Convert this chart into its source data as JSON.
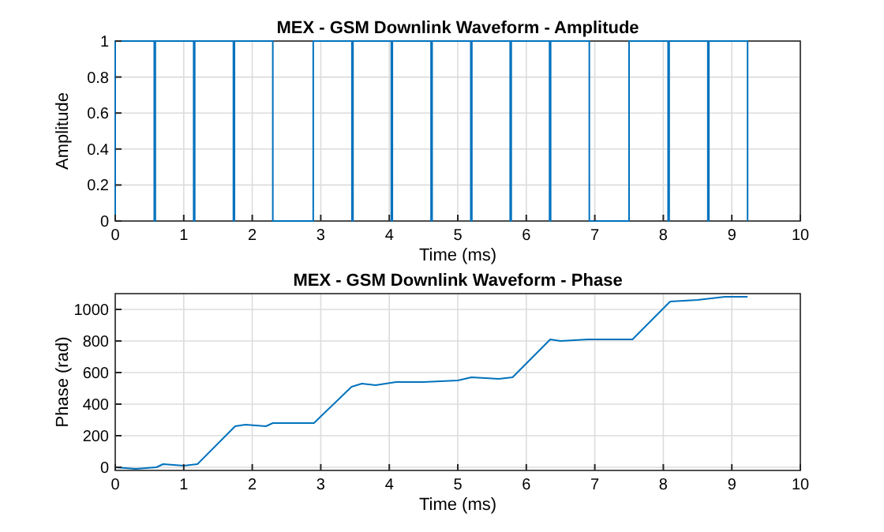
{
  "chart_data": [
    {
      "type": "line",
      "title": "MEX - GSM Downlink Waveform - Amplitude",
      "xlabel": "Time (ms)",
      "ylabel": "Amplitude",
      "xlim": [
        0,
        10
      ],
      "xticks": [
        0,
        1,
        2,
        3,
        4,
        5,
        6,
        7,
        8,
        9,
        10
      ],
      "ylim": [
        0,
        1
      ],
      "yticks": [
        0,
        0.2,
        0.4,
        0.6,
        0.8,
        1
      ],
      "grid": true,
      "marker": "none",
      "line_style": "solid",
      "series": [
        {
          "color": "#0072bd",
          "x": [
            0,
            0,
            0.57,
            0.57,
            0.585,
            0.585,
            1.145,
            1.145,
            1.16,
            1.16,
            1.725,
            1.725,
            1.74,
            1.74,
            2.3,
            2.3,
            2.89,
            2.89,
            3.455,
            3.455,
            3.47,
            3.47,
            4.03,
            4.03,
            4.045,
            4.045,
            4.61,
            4.61,
            4.625,
            4.625,
            5.19,
            5.19,
            5.205,
            5.205,
            5.765,
            5.765,
            5.78,
            5.78,
            6.34,
            6.34,
            6.355,
            6.355,
            6.92,
            6.92,
            7.5,
            7.5,
            8.07,
            8.07,
            8.085,
            8.085,
            8.65,
            8.65,
            8.665,
            8.665,
            9.23,
            9.23
          ],
          "values": [
            0,
            1,
            1,
            0,
            0,
            1,
            1,
            0,
            0,
            1,
            1,
            0,
            0,
            1,
            1,
            0,
            0,
            1,
            1,
            0,
            0,
            1,
            1,
            0,
            0,
            1,
            1,
            0,
            0,
            1,
            1,
            0,
            0,
            1,
            1,
            0,
            0,
            1,
            1,
            0,
            0,
            1,
            1,
            0,
            0,
            1,
            1,
            0,
            0,
            1,
            1,
            0,
            0,
            1,
            1,
            0
          ]
        }
      ]
    },
    {
      "type": "line",
      "title": "MEX - GSM Downlink Waveform - Phase",
      "xlabel": "Time (ms)",
      "ylabel": "Phase (rad)",
      "xlim": [
        0,
        10
      ],
      "xticks": [
        0,
        1,
        2,
        3,
        4,
        5,
        6,
        7,
        8,
        9,
        10
      ],
      "ylim": [
        -20,
        1100
      ],
      "yticks": [
        0,
        200,
        400,
        600,
        800,
        1000
      ],
      "grid": true,
      "marker": "none",
      "line_style": "solid",
      "series": [
        {
          "color": "#0072bd",
          "x": [
            0,
            0.3,
            0.6,
            0.7,
            1.0,
            1.2,
            1.75,
            1.9,
            2.2,
            2.3,
            2.9,
            3.45,
            3.6,
            3.8,
            4.1,
            4.5,
            5.0,
            5.2,
            5.6,
            5.8,
            6.35,
            6.5,
            6.9,
            7.55,
            8.1,
            8.5,
            8.9,
            9.23
          ],
          "values": [
            0,
            -10,
            0,
            20,
            10,
            20,
            260,
            270,
            260,
            280,
            280,
            510,
            530,
            520,
            540,
            540,
            550,
            570,
            560,
            570,
            810,
            800,
            810,
            810,
            1050,
            1060,
            1080,
            1080
          ]
        }
      ]
    }
  ]
}
